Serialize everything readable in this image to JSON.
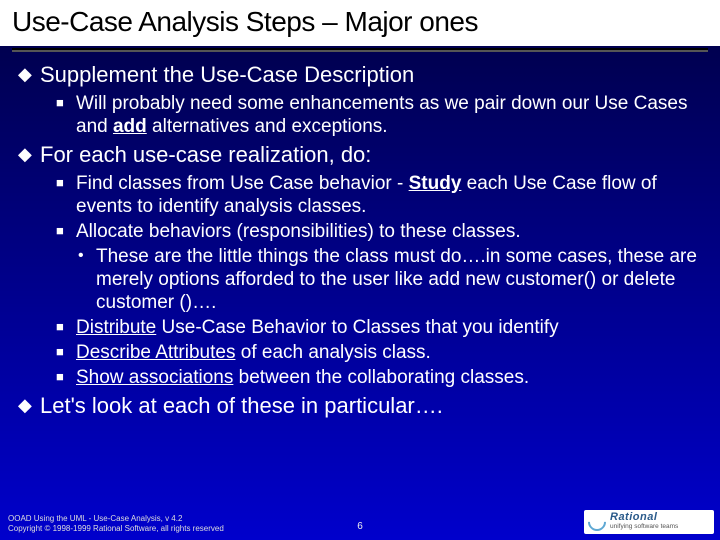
{
  "title": "Use-Case Analysis Steps – Major ones",
  "bullets": {
    "b1": "Supplement the Use-Case Description",
    "b1_1_a": "Will probably need some enhancements as we pair down our Use Cases and ",
    "b1_1_u": "add",
    "b1_1_b": " alternatives and exceptions.",
    "b2": "For each use-case realization, do:",
    "b2_1_a": "Find classes from Use Case behavior - ",
    "b2_1_u": "Study",
    "b2_1_b": " each Use Case flow of events to identify analysis classes.",
    "b2_2": "Allocate behaviors (responsibilities) to these classes.",
    "b2_2_1": "These are the little things the class must do….in some cases, these are merely options afforded to the user like add new customer()  or  delete customer ()….",
    "b2_3_u": "Distribute",
    "b2_3_b": " Use-Case Behavior to Classes that you identify",
    "b2_4_u": "Describe Attributes",
    "b2_4_b": " of each analysis class.",
    "b2_5_u": "Show associations",
    "b2_5_b": " between the collaborating classes.",
    "b3": "Let's look at each of these in particular…."
  },
  "footer": {
    "line1": "OOAD Using the UML - Use-Case Analysis, v 4.2",
    "line2": "Copyright © 1998-1999 Rational Software, all rights reserved",
    "page": "6",
    "logo_main": "Rational",
    "logo_sub": "unifying software teams"
  }
}
